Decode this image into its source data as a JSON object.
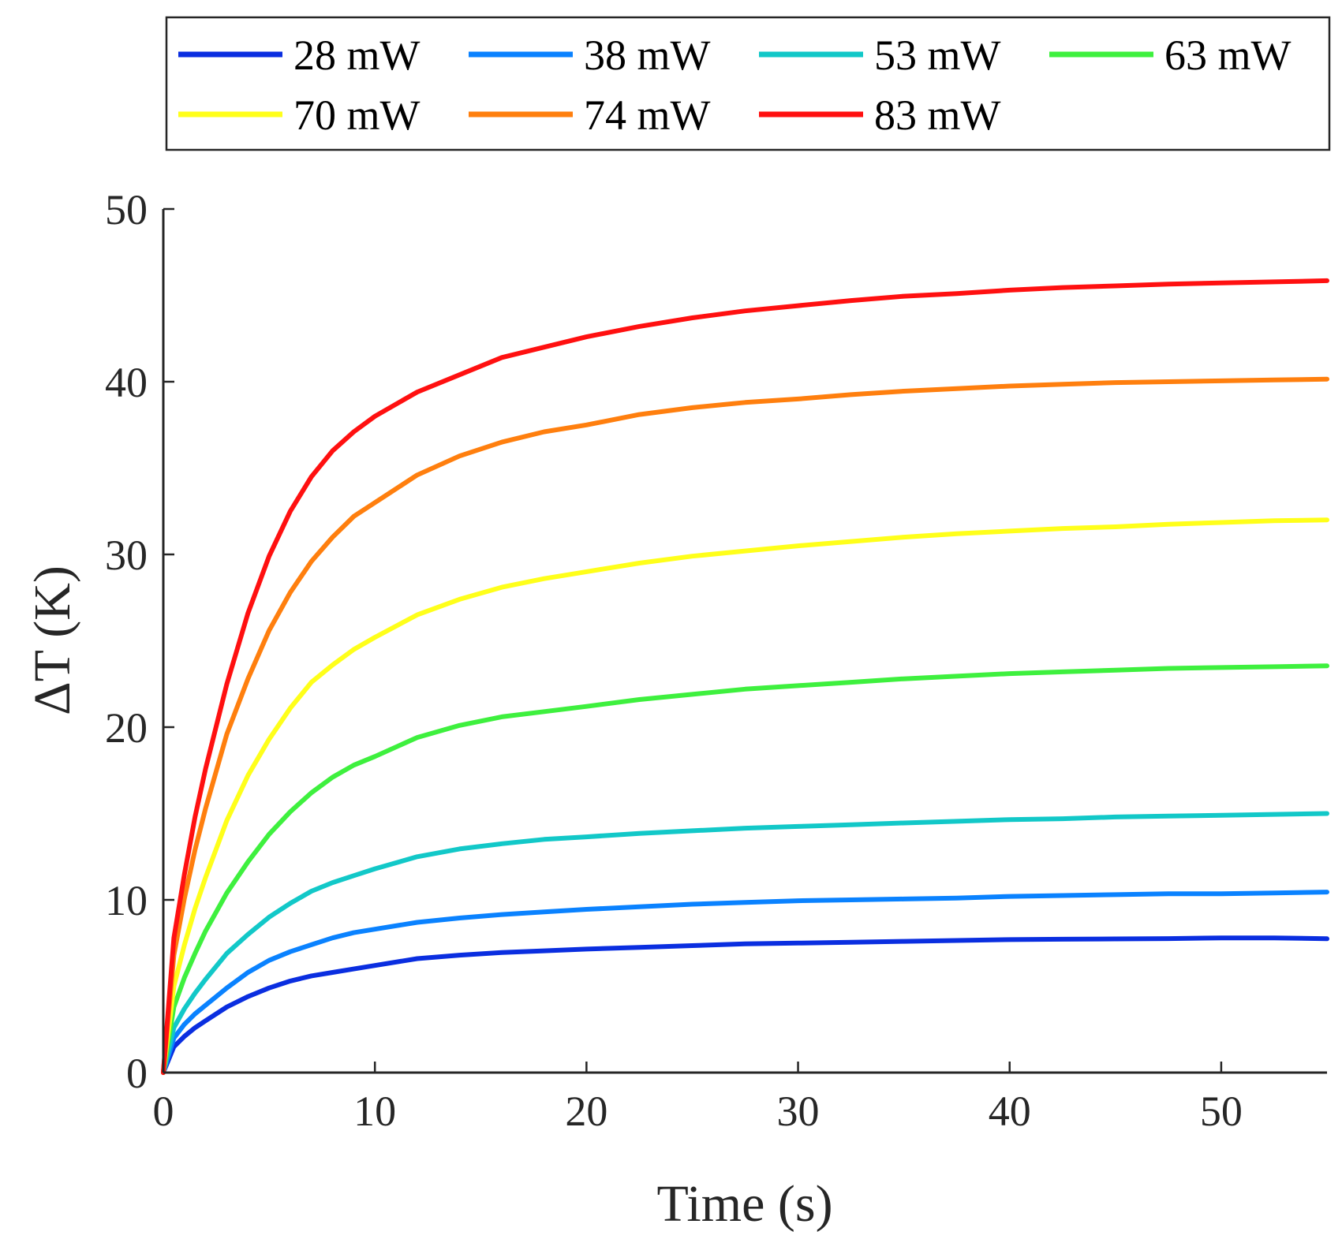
{
  "chart_data": {
    "type": "line",
    "title": "",
    "xlabel": "Time (s)",
    "ylabel": "ΔT (K)",
    "xlim": [
      0,
      55
    ],
    "ylim": [
      0,
      50
    ],
    "xticks": [
      0,
      10,
      20,
      30,
      40,
      50
    ],
    "yticks": [
      0,
      10,
      20,
      30,
      40,
      50
    ],
    "xtick_labels": [
      "0",
      "10",
      "20",
      "30",
      "40",
      "50"
    ],
    "ytick_labels": [
      "0",
      "10",
      "20",
      "30",
      "40",
      "50"
    ],
    "grid": false,
    "legend_position": "top",
    "x": [
      0,
      0.5,
      1,
      1.5,
      2,
      3,
      4,
      5,
      6,
      7,
      8,
      9,
      10,
      12,
      14,
      16,
      18,
      20,
      22.5,
      25,
      27.5,
      30,
      32.5,
      35,
      37.5,
      40,
      42.5,
      45,
      47.5,
      50,
      52.5,
      55
    ],
    "series": [
      {
        "name": "28 mW",
        "color": "#0a2ee0",
        "values": [
          0,
          1.5,
          2.1,
          2.6,
          3.0,
          3.8,
          4.4,
          4.9,
          5.3,
          5.6,
          5.8,
          6.0,
          6.2,
          6.6,
          6.8,
          6.95,
          7.05,
          7.15,
          7.25,
          7.35,
          7.45,
          7.5,
          7.55,
          7.6,
          7.65,
          7.7,
          7.72,
          7.74,
          7.76,
          7.8,
          7.8,
          7.75
        ]
      },
      {
        "name": "38 mW",
        "color": "#0a82ff",
        "values": [
          0,
          2.0,
          2.8,
          3.4,
          3.9,
          4.9,
          5.8,
          6.5,
          7.0,
          7.4,
          7.8,
          8.1,
          8.3,
          8.7,
          8.95,
          9.15,
          9.3,
          9.45,
          9.6,
          9.75,
          9.85,
          9.95,
          10.0,
          10.05,
          10.1,
          10.2,
          10.25,
          10.3,
          10.35,
          10.35,
          10.4,
          10.45
        ]
      },
      {
        "name": "53 mW",
        "color": "#12c8c8",
        "values": [
          0,
          2.6,
          3.7,
          4.6,
          5.4,
          6.9,
          8.0,
          9.0,
          9.8,
          10.5,
          11.0,
          11.4,
          11.8,
          12.5,
          12.95,
          13.25,
          13.5,
          13.65,
          13.85,
          14.0,
          14.15,
          14.25,
          14.35,
          14.45,
          14.55,
          14.65,
          14.7,
          14.8,
          14.85,
          14.9,
          14.95,
          15.0
        ]
      },
      {
        "name": "63 mW",
        "color": "#3ef03e",
        "values": [
          0,
          3.8,
          5.5,
          6.9,
          8.2,
          10.4,
          12.2,
          13.8,
          15.1,
          16.2,
          17.1,
          17.8,
          18.3,
          19.4,
          20.1,
          20.6,
          20.9,
          21.2,
          21.6,
          21.9,
          22.2,
          22.4,
          22.6,
          22.8,
          22.95,
          23.1,
          23.2,
          23.3,
          23.4,
          23.45,
          23.5,
          23.55
        ]
      },
      {
        "name": "70 mW",
        "color": "#ffff1a",
        "values": [
          0,
          5.0,
          7.4,
          9.5,
          11.3,
          14.6,
          17.2,
          19.3,
          21.1,
          22.6,
          23.6,
          24.5,
          25.2,
          26.5,
          27.4,
          28.1,
          28.6,
          29.0,
          29.5,
          29.9,
          30.2,
          30.5,
          30.75,
          31.0,
          31.2,
          31.35,
          31.5,
          31.6,
          31.75,
          31.85,
          31.95,
          32.0
        ]
      },
      {
        "name": "74 mW",
        "color": "#ff7f0e",
        "values": [
          0,
          6.8,
          10.1,
          12.9,
          15.3,
          19.6,
          22.8,
          25.6,
          27.8,
          29.6,
          31.0,
          32.2,
          33.0,
          34.6,
          35.7,
          36.5,
          37.1,
          37.5,
          38.1,
          38.5,
          38.8,
          39.0,
          39.25,
          39.45,
          39.6,
          39.75,
          39.85,
          39.95,
          40.0,
          40.05,
          40.1,
          40.15
        ]
      },
      {
        "name": "83 mW",
        "color": "#ff1010",
        "values": [
          0,
          7.8,
          11.5,
          14.8,
          17.6,
          22.5,
          26.6,
          29.9,
          32.5,
          34.5,
          36.0,
          37.1,
          38.0,
          39.4,
          40.4,
          41.4,
          42.0,
          42.6,
          43.2,
          43.7,
          44.1,
          44.4,
          44.7,
          44.95,
          45.1,
          45.3,
          45.45,
          45.55,
          45.65,
          45.72,
          45.78,
          45.85
        ]
      }
    ]
  }
}
